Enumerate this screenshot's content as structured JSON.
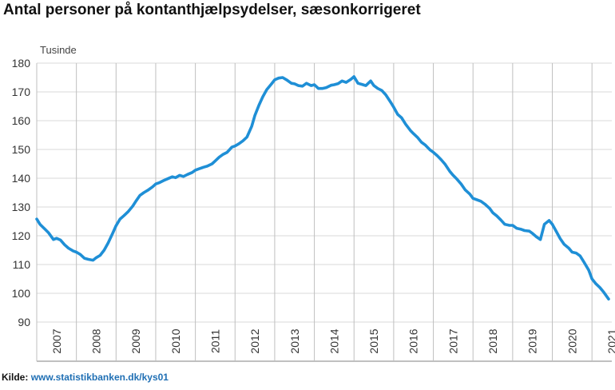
{
  "title": "Antal personer på kontanthjælpsydelser, sæsonkorrigeret",
  "source": {
    "label": "Kilde:",
    "link_text": "www.statistikbanken.dk/kys01"
  },
  "colors": {
    "line": "#1f8fd6",
    "grid": "#d9d9d9",
    "axis": "#808080",
    "source_link": "#1f6fb4"
  },
  "chart_data": {
    "type": "line",
    "title": "Antal personer på kontanthjælpsydelser, sæsonkorrigeret",
    "ylabel": "Tusinde",
    "xlabel": "",
    "ylim": [
      90,
      180
    ],
    "xlim": [
      2007.0,
      2021.5
    ],
    "yticks": [
      90,
      100,
      110,
      120,
      130,
      140,
      150,
      160,
      170,
      180
    ],
    "xtick_labels": [
      "2007",
      "2008",
      "2009",
      "2010",
      "2011",
      "2012",
      "2013",
      "2014",
      "2015",
      "2016",
      "2017",
      "2018",
      "2019",
      "2020",
      "2021"
    ],
    "grid": "horizontal",
    "legend": "none",
    "series": [
      {
        "x": [
          2007.0,
          2007.08,
          2007.2,
          2007.3,
          2007.42,
          2007.5,
          2007.6,
          2007.7,
          2007.8,
          2007.92,
          2008.0,
          2008.1,
          2008.2,
          2008.3,
          2008.42,
          2008.5,
          2008.6,
          2008.7,
          2008.8,
          2008.92,
          2009.0,
          2009.1,
          2009.2,
          2009.3,
          2009.42,
          2009.5,
          2009.6,
          2009.7,
          2009.8,
          2009.92,
          2010.0,
          2010.1,
          2010.2,
          2010.3,
          2010.42,
          2010.5,
          2010.6,
          2010.7,
          2010.8,
          2010.92,
          2011.0,
          2011.1,
          2011.2,
          2011.3,
          2011.42,
          2011.5,
          2011.6,
          2011.7,
          2011.8,
          2011.92,
          2012.0,
          2012.1,
          2012.2,
          2012.3,
          2012.42,
          2012.5,
          2012.6,
          2012.7,
          2012.8,
          2012.92,
          2013.0,
          2013.1,
          2013.2,
          2013.3,
          2013.42,
          2013.5,
          2013.6,
          2013.7,
          2013.8,
          2013.92,
          2014.0,
          2014.1,
          2014.2,
          2014.3,
          2014.42,
          2014.5,
          2014.6,
          2014.7,
          2014.8,
          2014.92,
          2015.0,
          2015.1,
          2015.2,
          2015.3,
          2015.42,
          2015.5,
          2015.6,
          2015.7,
          2015.8,
          2015.92,
          2016.0,
          2016.1,
          2016.2,
          2016.3,
          2016.42,
          2016.5,
          2016.6,
          2016.7,
          2016.8,
          2016.92,
          2017.0,
          2017.1,
          2017.2,
          2017.3,
          2017.42,
          2017.5,
          2017.6,
          2017.7,
          2017.8,
          2017.92,
          2018.0,
          2018.1,
          2018.2,
          2018.3,
          2018.42,
          2018.5,
          2018.6,
          2018.7,
          2018.8,
          2018.92,
          2019.0,
          2019.1,
          2019.2,
          2019.3,
          2019.42,
          2019.5,
          2019.6,
          2019.7,
          2019.8,
          2019.92,
          2020.0,
          2020.1,
          2020.2,
          2020.3,
          2020.42,
          2020.5,
          2020.6,
          2020.7,
          2020.8,
          2020.92,
          2021.0,
          2021.1,
          2021.2,
          2021.3,
          2021.42
        ],
        "values": [
          125.8,
          124.0,
          122.4,
          121.0,
          118.7,
          119.1,
          118.5,
          116.9,
          115.7,
          114.7,
          114.3,
          113.5,
          112.2,
          111.8,
          111.5,
          112.4,
          113.2,
          115.0,
          117.5,
          121.0,
          123.5,
          125.8,
          127.0,
          128.3,
          130.3,
          132.0,
          134.0,
          135.0,
          135.8,
          137.0,
          138.0,
          138.5,
          139.2,
          139.8,
          140.5,
          140.2,
          141.0,
          140.6,
          141.3,
          142.0,
          142.8,
          143.3,
          143.8,
          144.2,
          145.0,
          146.0,
          147.3,
          148.3,
          149.0,
          150.8,
          151.2,
          152.0,
          153.0,
          154.3,
          158.0,
          161.8,
          165.3,
          168.3,
          170.8,
          172.8,
          174.2,
          174.8,
          175.0,
          174.2,
          173.0,
          172.8,
          172.2,
          172.0,
          173.0,
          172.2,
          172.5,
          171.2,
          171.2,
          171.5,
          172.3,
          172.5,
          172.9,
          173.8,
          173.3,
          174.4,
          175.3,
          173.0,
          172.6,
          172.2,
          173.8,
          172.2,
          171.2,
          170.5,
          169.0,
          166.5,
          164.7,
          162.2,
          161.0,
          158.8,
          156.6,
          155.5,
          154.2,
          152.5,
          151.5,
          149.8,
          149.0,
          147.8,
          146.4,
          144.8,
          142.3,
          141.0,
          139.6,
          138.0,
          136.0,
          134.5,
          133.0,
          132.5,
          132.0,
          131.0,
          129.5,
          128.0,
          126.9,
          125.5,
          124.0,
          123.6,
          123.6,
          122.6,
          122.3,
          121.8,
          121.6,
          120.8,
          119.6,
          118.7,
          124.0,
          125.3,
          124.0,
          121.5,
          119.0,
          117.0,
          115.6,
          114.3,
          114.0,
          113.0,
          110.8,
          108.0,
          105.0,
          103.3,
          102.0,
          100.3,
          98.0
        ]
      }
    ]
  }
}
